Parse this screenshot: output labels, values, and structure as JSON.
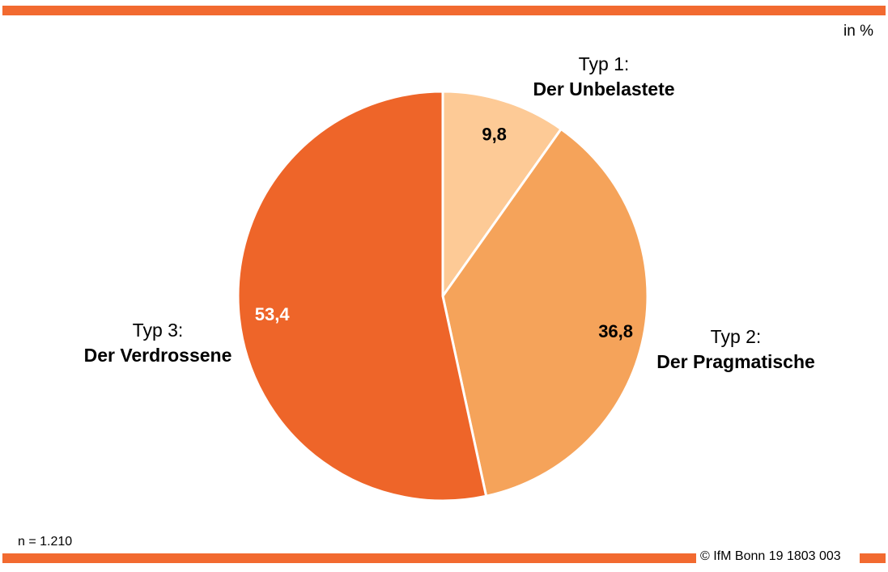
{
  "colors": {
    "accent": "#f26a30",
    "slice_1": "#fdca96",
    "slice_2": "#f5a35a",
    "slice_3": "#ee6529"
  },
  "unit_label": "in %",
  "sample_size": "n = 1.210",
  "copyright": "© IfM Bonn 19 1803 003",
  "chart_data": {
    "type": "pie",
    "start_angle_deg": 0,
    "direction": "clockwise",
    "slices": [
      {
        "category": "Typ 1:",
        "name": "Der Unbelastete",
        "value": 9.8,
        "label": "9,8",
        "color": "#fdca96",
        "label_color": "#000000"
      },
      {
        "category": "Typ 2:",
        "name": "Der Pragmatische",
        "value": 36.8,
        "label": "36,8",
        "color": "#f5a35a",
        "label_color": "#000000"
      },
      {
        "category": "Typ 3:",
        "name": "Der Verdrossene",
        "value": 53.4,
        "label": "53,4",
        "color": "#ee6529",
        "label_color": "#ffffff"
      }
    ]
  }
}
